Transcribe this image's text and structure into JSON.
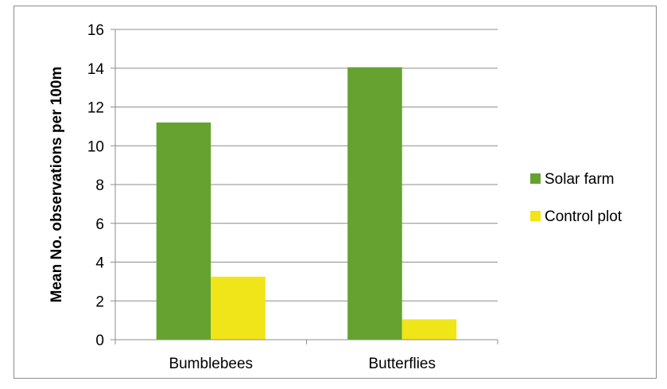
{
  "chart_data": {
    "type": "bar",
    "categories": [
      "Bumblebees",
      "Butterflies"
    ],
    "series": [
      {
        "name": "Solar farm",
        "values": [
          11.2,
          14.05
        ],
        "color": "#65A22F"
      },
      {
        "name": "Control plot",
        "values": [
          3.25,
          1.05
        ],
        "color": "#F0E518"
      }
    ],
    "title": "",
    "xlabel": "",
    "ylabel": "Mean No. observations per 100m",
    "ylim": [
      0,
      16
    ],
    "yticks": [
      0,
      2,
      4,
      6,
      8,
      10,
      12,
      14,
      16
    ],
    "grid": true,
    "legend_position": "right"
  }
}
